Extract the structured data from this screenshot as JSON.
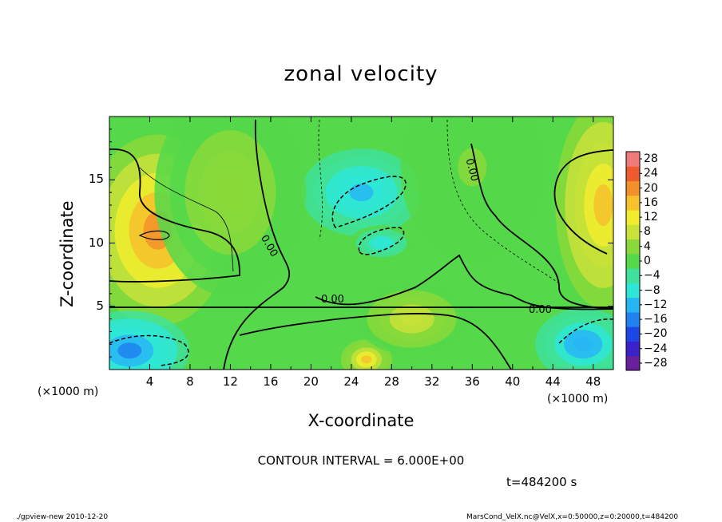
{
  "title": "zonal velocity",
  "chart_data": {
    "type": "heatmap",
    "title": "zonal velocity",
    "xlabel": "X-coordinate",
    "ylabel": "Z-coordinate",
    "x_unit": "(×1000 m)",
    "y_unit": "(×1000 m)",
    "xlim": [
      0,
      50
    ],
    "ylim": [
      0,
      20
    ],
    "x_ticks": [
      4,
      8,
      12,
      16,
      20,
      24,
      28,
      32,
      36,
      40,
      44,
      48
    ],
    "y_ticks": [
      5,
      10,
      15
    ],
    "contour_labels": [
      "0.00",
      "0.00",
      "0.00",
      "0.00"
    ],
    "colorbar": {
      "ticks": [
        "28",
        "24",
        "20",
        "16",
        "12",
        "8",
        "4",
        "0",
        "−4",
        "−8",
        "−12",
        "−16",
        "−20",
        "−24",
        "−28"
      ],
      "range": [
        -30,
        30
      ],
      "colors": [
        "#6a1f9c",
        "#3b22c8",
        "#1d46e6",
        "#1f82f0",
        "#27b6f4",
        "#2ee6d6",
        "#3fe29a",
        "#55d84a",
        "#8ad93a",
        "#c8e23a",
        "#f1ec2e",
        "#f6c12b",
        "#f3902a",
        "#ee5b2e",
        "#f07a7a"
      ]
    },
    "features": [
      {
        "x": 4.8,
        "z": 11,
        "value": 18
      },
      {
        "x": 49,
        "z": 13,
        "value": 16
      },
      {
        "x": 25,
        "z": 14,
        "value": -12
      },
      {
        "x": 27,
        "z": 10,
        "value": -10
      },
      {
        "x": 2,
        "z": 1.5,
        "value": -16
      },
      {
        "x": 47,
        "z": 2,
        "value": -14
      },
      {
        "x": 25.5,
        "z": 0.8,
        "value": 14
      },
      {
        "x": 12,
        "z": 14,
        "value": 4
      },
      {
        "x": 36,
        "z": 16,
        "value": 2
      },
      {
        "x": 30,
        "z": 4,
        "value": 8
      }
    ]
  },
  "contour_interval": "CONTOUR INTERVAL = 6.000E+00",
  "time_label": "t=484200 s",
  "footer_left": "./gpview-new  2010-12-20",
  "footer_right": "MarsCond_VelX.nc@VelX,x=0:50000,z=0:20000,t=484200"
}
